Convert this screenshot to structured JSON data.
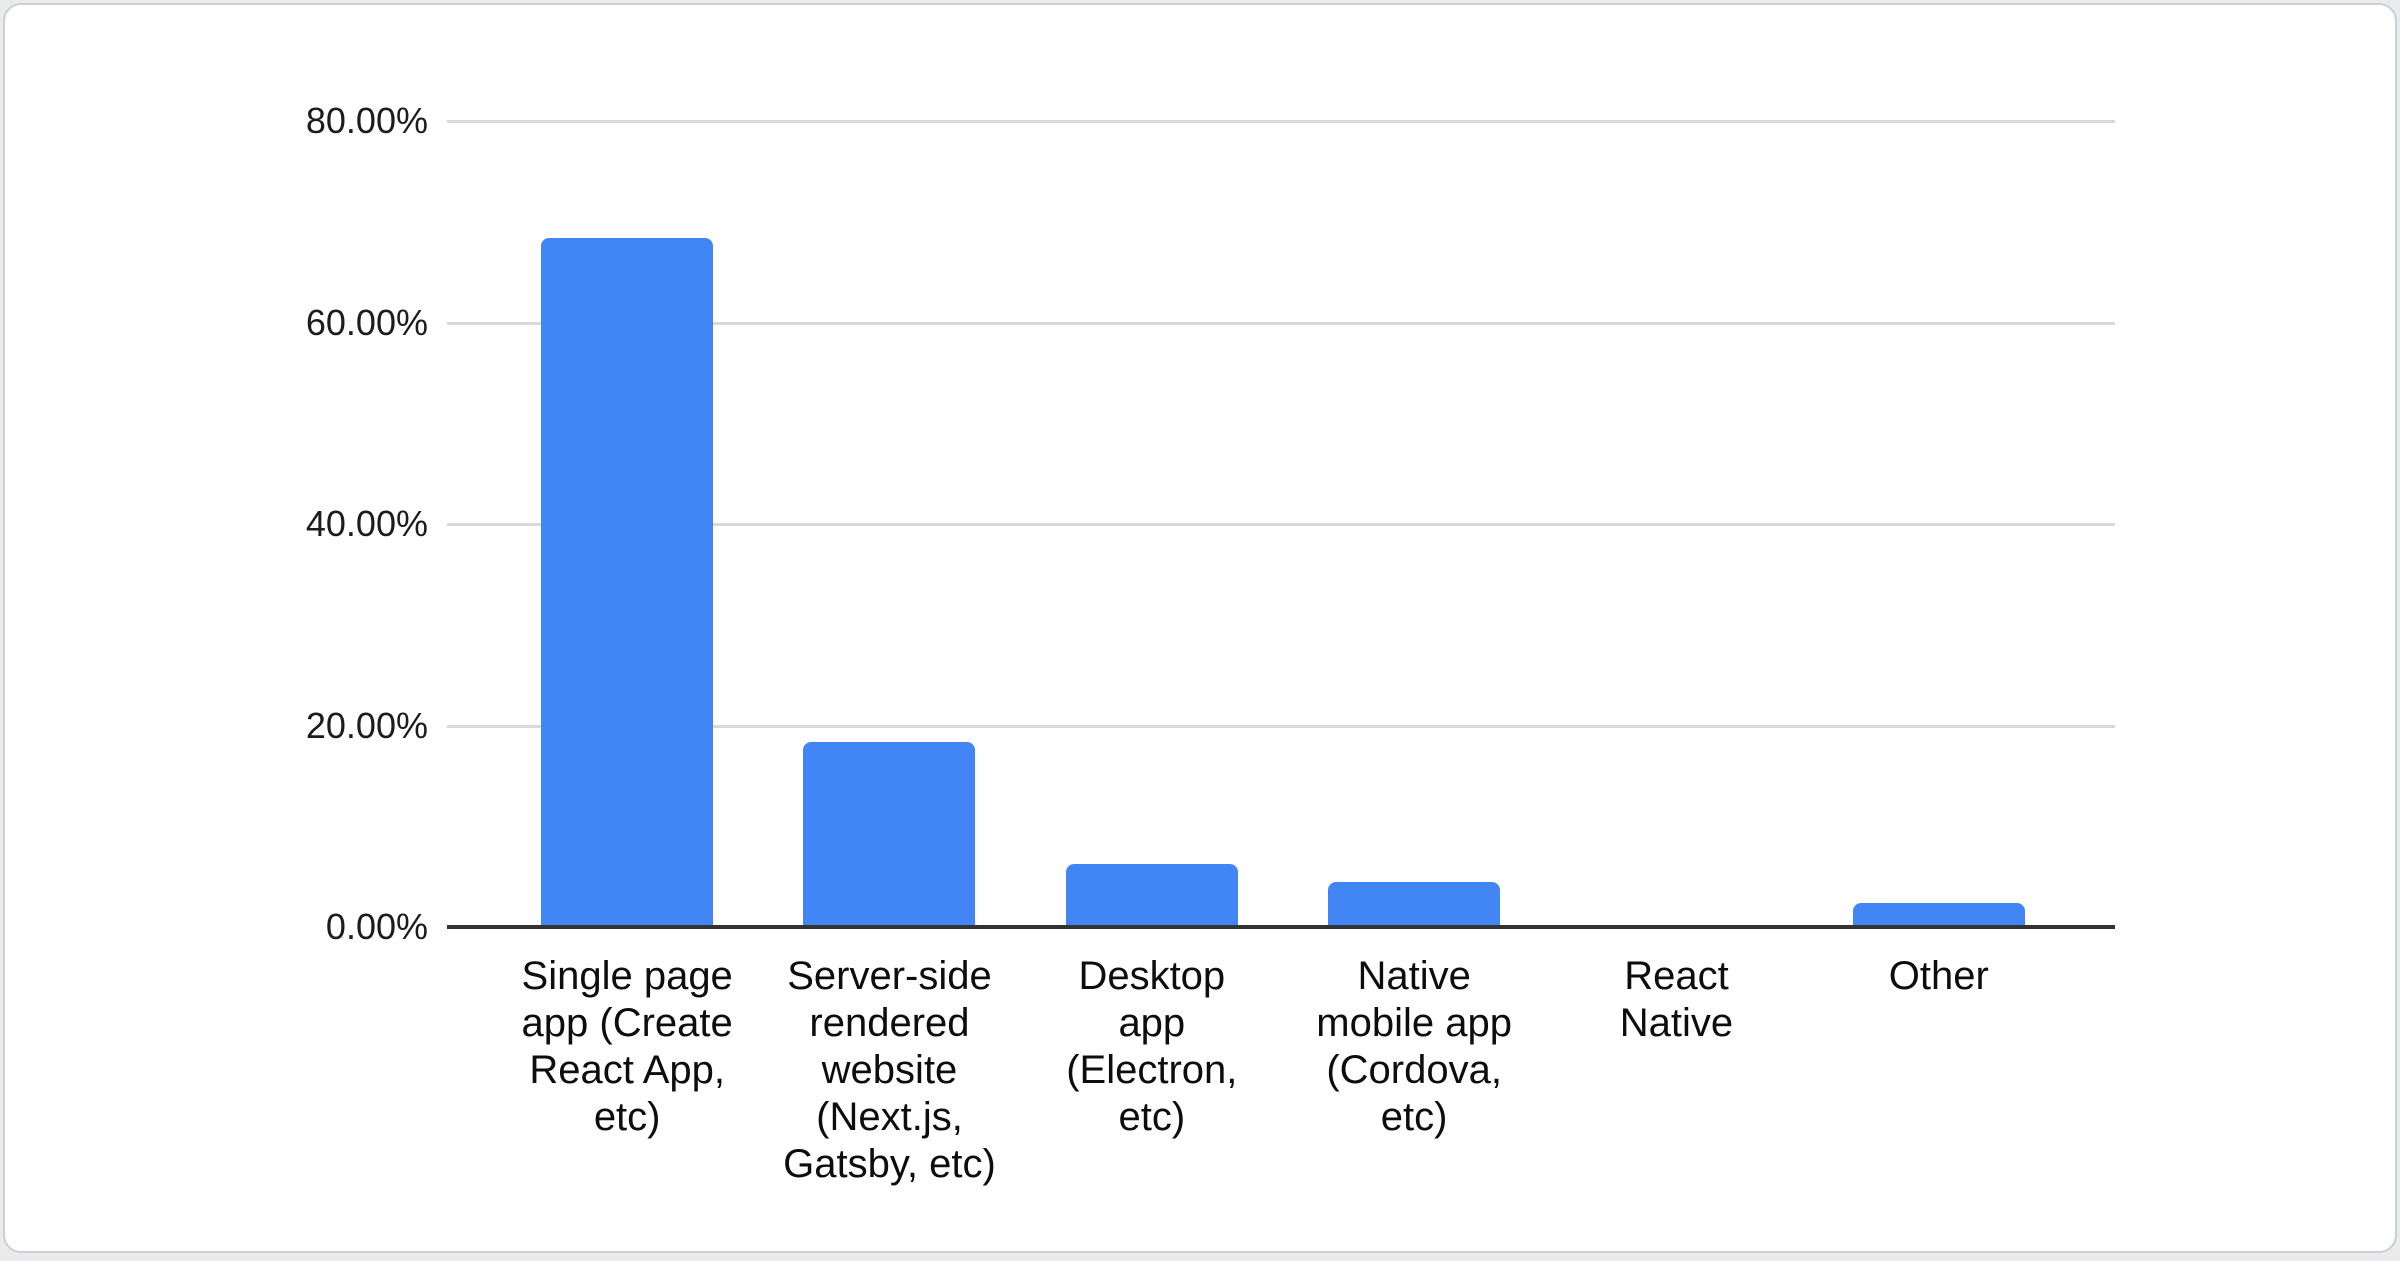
{
  "page": {
    "background_color": "#e9ebed",
    "card_background": "#ffffff",
    "card_border_color": "#ccd0d4"
  },
  "chart_data": {
    "type": "bar",
    "title": "",
    "legend_position": "none",
    "grid": true,
    "bar_color": "#4285f4",
    "gridline_color": "#d9d9d9",
    "baseline_color": "#333333",
    "y_label_color": "#1c1c1c",
    "x_label_color": "#0d0d0d",
    "ylim": [
      0,
      80
    ],
    "ylabel": "",
    "xlabel": "",
    "y_ticks": [
      {
        "value": 80,
        "label": "80.00%"
      },
      {
        "value": 60,
        "label": "60.00%"
      },
      {
        "value": 40,
        "label": "40.00%"
      },
      {
        "value": 20,
        "label": "20.00%"
      },
      {
        "value": 0,
        "label": "0.00%"
      }
    ],
    "categories": [
      {
        "label": "Single page app (Create React App, etc)",
        "lines": [
          "Single page",
          "app (Create",
          "React App,",
          "etc)"
        ]
      },
      {
        "label": "Server-side rendered website (Next.js, Gatsby, etc)",
        "lines": [
          "Server-side",
          "rendered",
          "website",
          "(Next.js,",
          "Gatsby, etc)"
        ]
      },
      {
        "label": "Desktop app (Electron, etc)",
        "lines": [
          "Desktop",
          "app",
          "(Electron,",
          "etc)"
        ]
      },
      {
        "label": "Native mobile app (Cordova, etc)",
        "lines": [
          "Native",
          "mobile app",
          "(Cordova,",
          "etc)"
        ]
      },
      {
        "label": "React Native",
        "lines": [
          "React",
          "Native"
        ]
      },
      {
        "label": "Other",
        "lines": [
          "Other"
        ]
      }
    ],
    "values": [
      68.4,
      18.4,
      6.3,
      4.5,
      0,
      2.4
    ]
  }
}
